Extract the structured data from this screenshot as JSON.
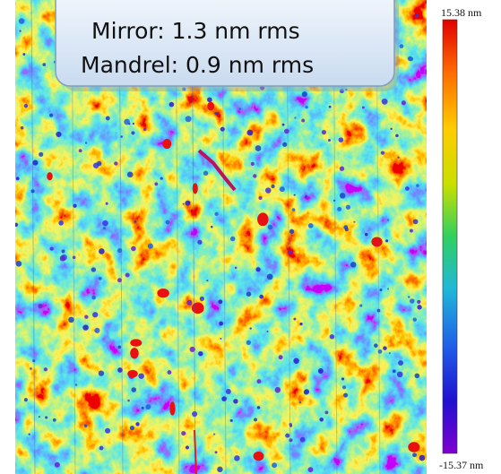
{
  "callout": {
    "lines": [
      "Mirror: 1.3 nm rms",
      "Mandrel: 0.9 nm rms"
    ]
  },
  "colorbar": {
    "max_label": "15.38 nm",
    "min_label": "-15.37 nm"
  }
}
